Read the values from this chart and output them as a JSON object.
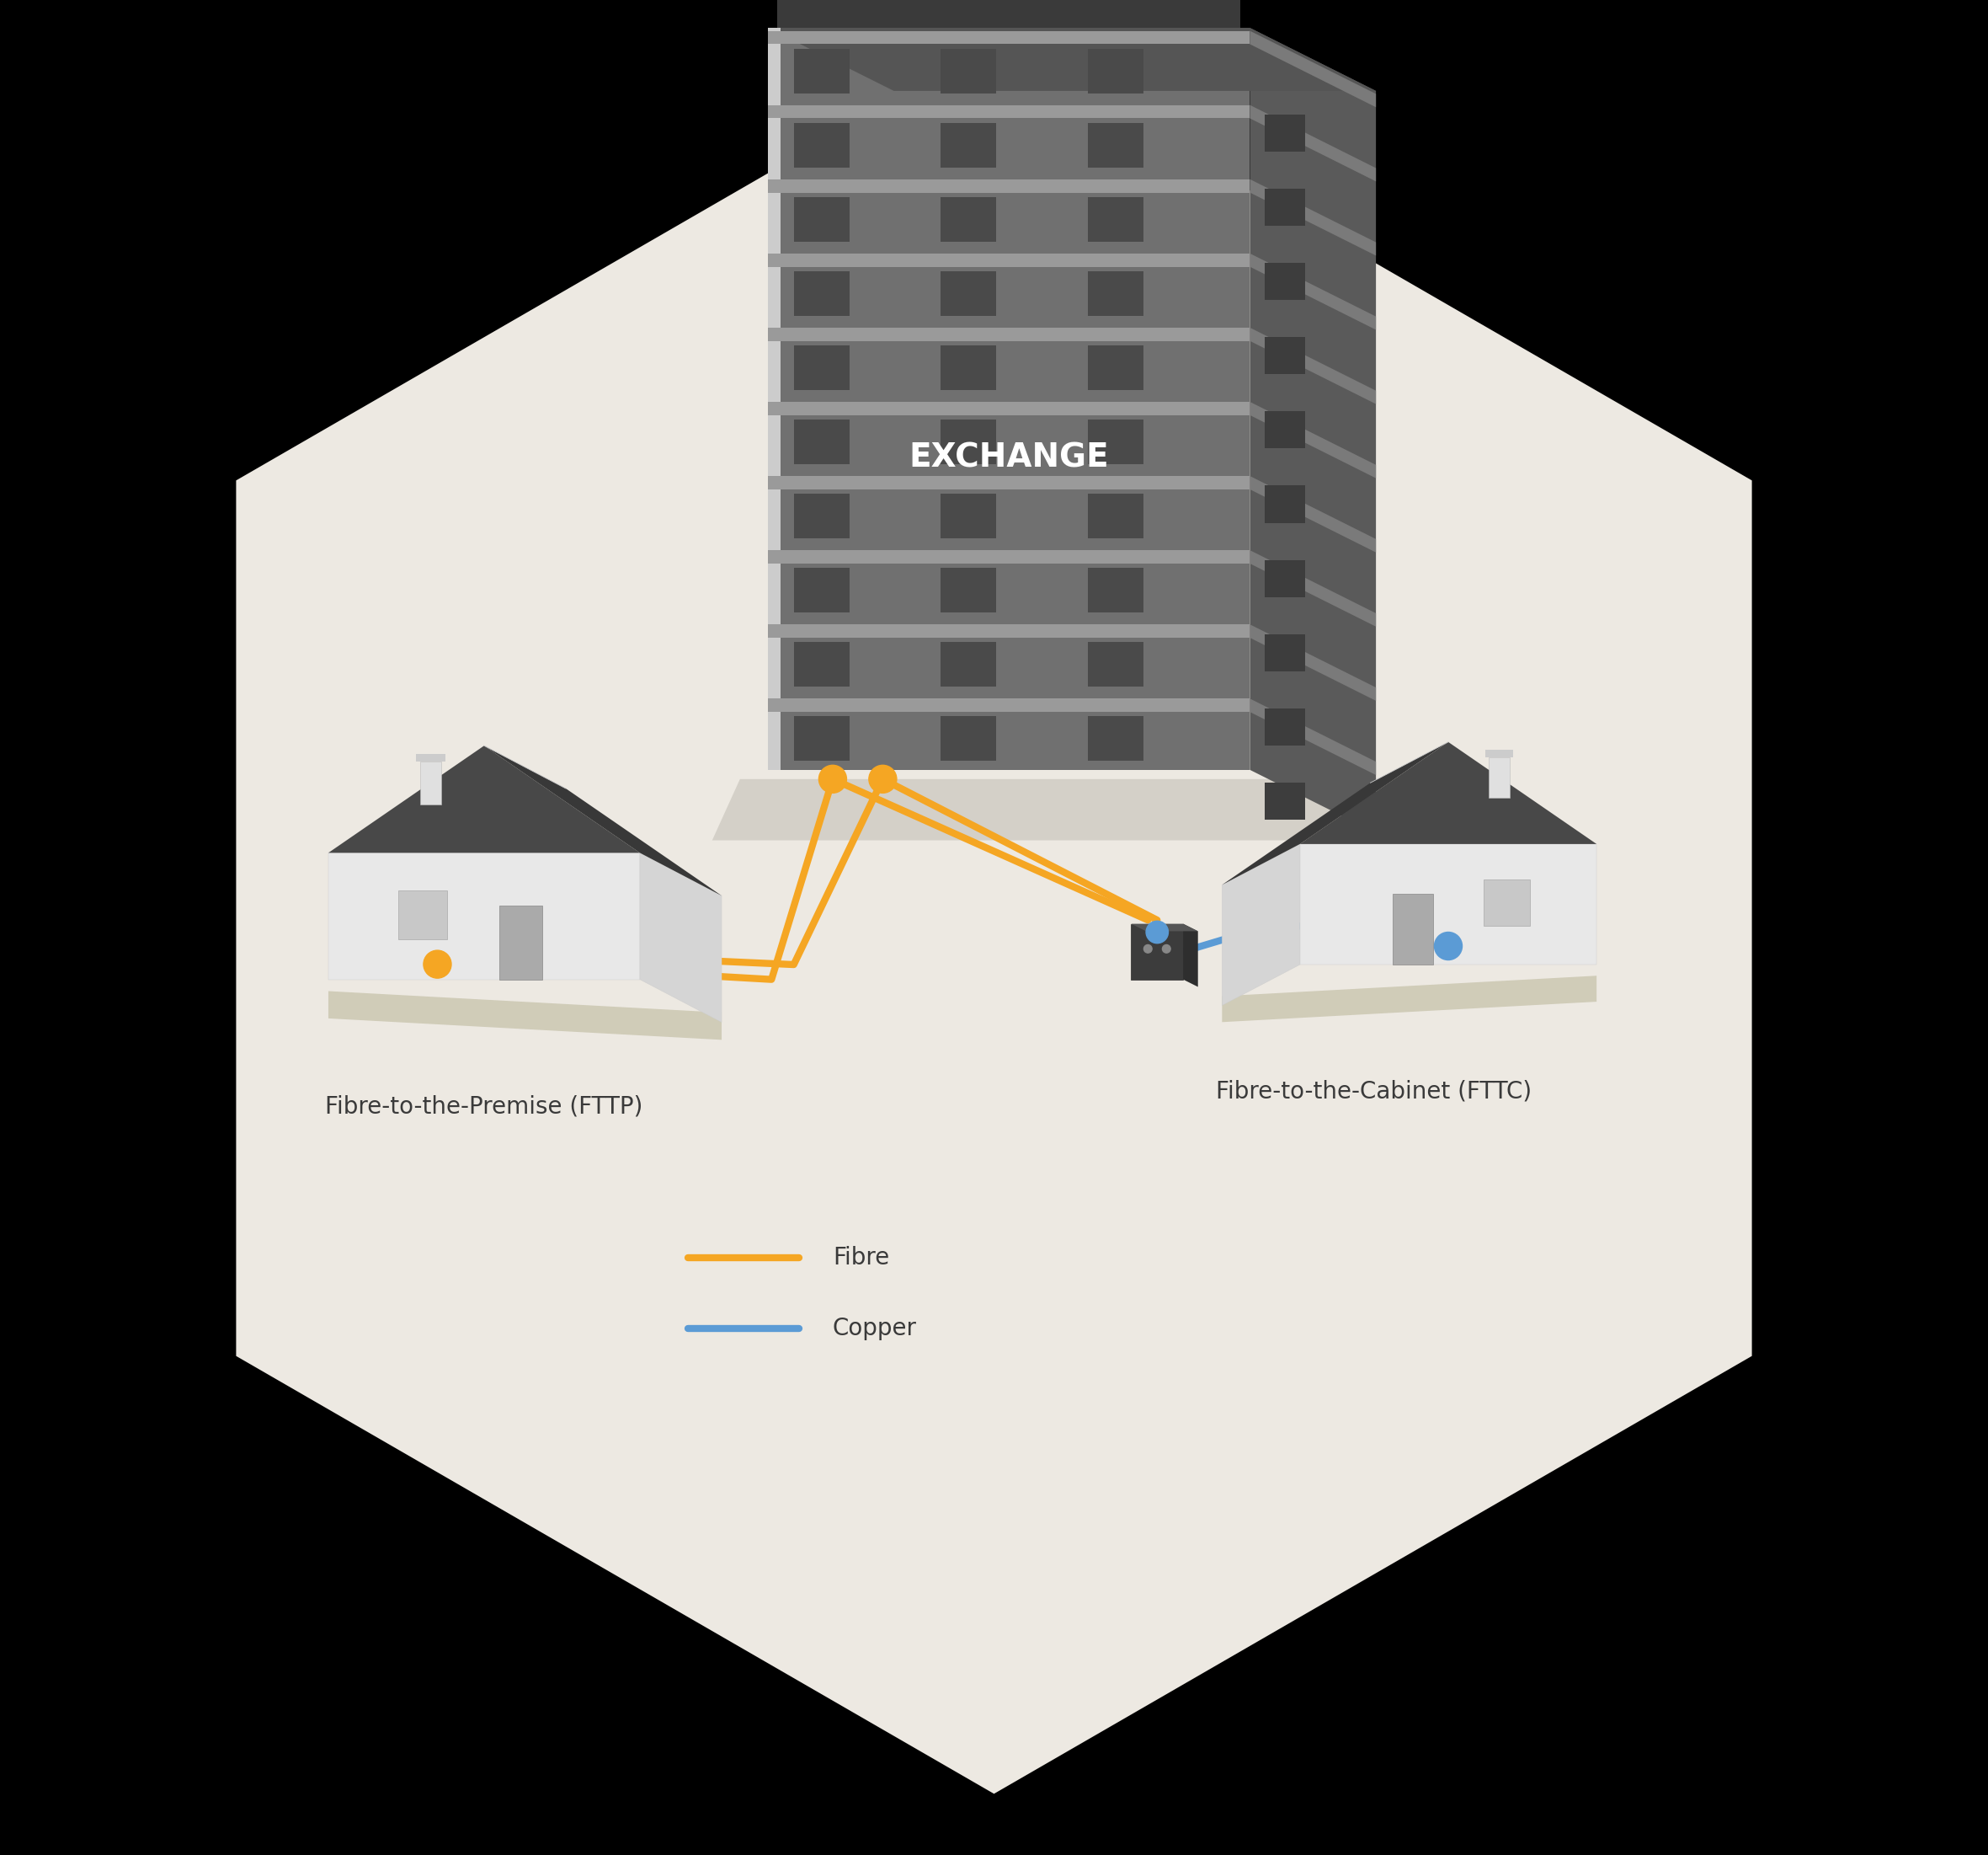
{
  "bg_color": "#000000",
  "hex_color": "#EDE9E2",
  "fibre_color": "#F5A623",
  "copper_color": "#5B9BD5",
  "fttp_label": "Fibre-to-the-Premise (FTTP)",
  "fttc_label": "Fibre-to-the-Cabinet (FTTC)",
  "fibre_legend": "Fibre",
  "copper_legend": "Copper",
  "label_color": "#3A3A3A",
  "exchange_label": "EXCHANGE",
  "label_fontsize": 20,
  "legend_fontsize": 20
}
